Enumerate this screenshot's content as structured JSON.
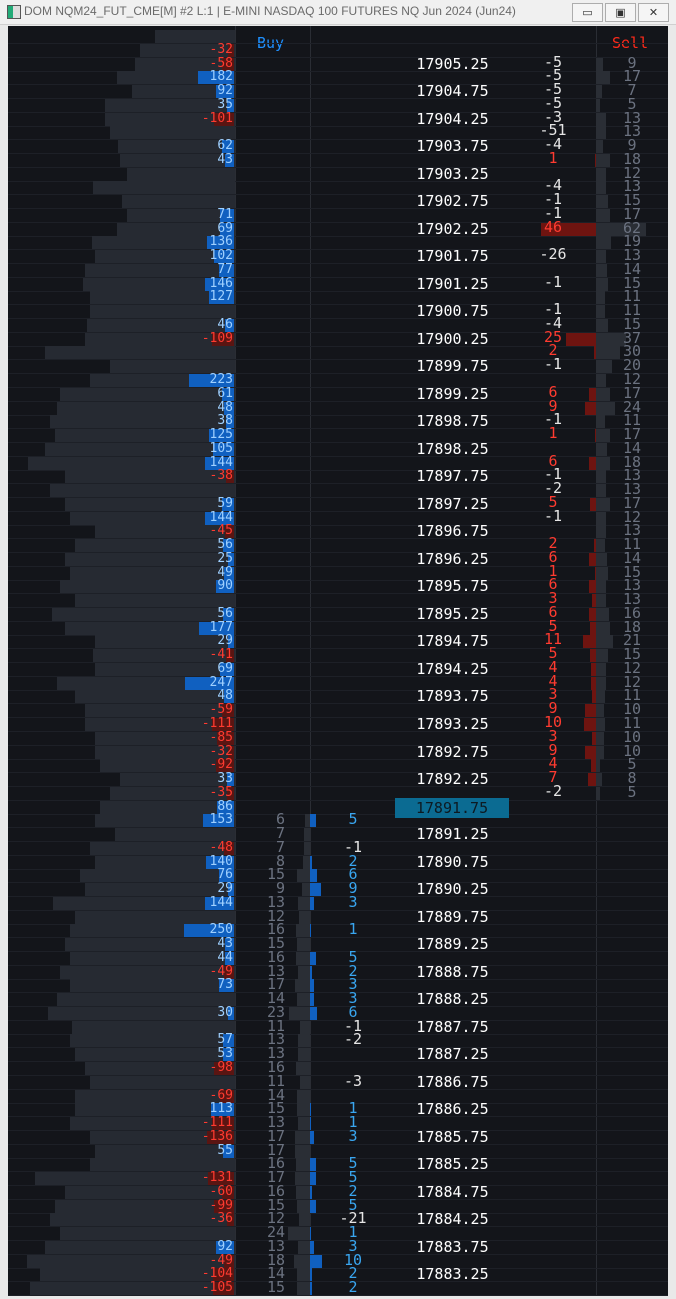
{
  "window": {
    "title": "DOM NQM24_FUT_CME[M] #2 L:1 | E-MINI NASDAQ 100 FUTURES NQ Jun 2024 (Jun24)",
    "minimize_icon": "minimize-icon",
    "maximize_icon": "restore-icon",
    "close_icon": "close-icon"
  },
  "header": {
    "buy_label": "Buy",
    "sell_label": "Sell",
    "buy_color": "#1e90ff",
    "sell_color": "#ff2a1a"
  },
  "colors": {
    "positive_delta": "#9fd0ff",
    "positive_box": "#1060c0",
    "negative_delta": "#ff3b30",
    "buy_delta": "#39a6f0",
    "sell_positive": "#ff3b30",
    "neutral": "#e6e6e6",
    "current_price_bg": "#0b6b92"
  },
  "ladder": {
    "current_price": "17891.75",
    "price_labels": [
      "17905.25",
      "17904.75",
      "17904.25",
      "17903.75",
      "17903.25",
      "17902.75",
      "17902.25",
      "17901.75",
      "17901.25",
      "17900.75",
      "17900.25",
      "17899.75",
      "17899.25",
      "17898.75",
      "17898.25",
      "17897.75",
      "17897.25",
      "17896.75",
      "17896.25",
      "17895.75",
      "17895.25",
      "17894.75",
      "17894.25",
      "17893.75",
      "17893.25",
      "17892.75",
      "17892.25",
      "17891.75",
      "17891.25",
      "17890.75",
      "17890.25",
      "17889.75",
      "17889.25",
      "17888.75",
      "17888.25",
      "17887.75",
      "17887.25",
      "17886.75",
      "17886.25",
      "17885.75",
      "17885.25",
      "17884.75",
      "17884.25",
      "17883.75",
      "17883.25"
    ],
    "left_delta": [
      null,
      -32,
      -58,
      182,
      92,
      35,
      -101,
      null,
      62,
      43,
      null,
      null,
      null,
      71,
      69,
      136,
      102,
      77,
      146,
      127,
      null,
      46,
      -109,
      null,
      null,
      223,
      61,
      48,
      38,
      125,
      105,
      144,
      -38,
      null,
      59,
      144,
      -45,
      56,
      25,
      49,
      90,
      null,
      56,
      177,
      29,
      -41,
      69,
      247,
      48,
      -59,
      -111,
      -85,
      -32,
      -92,
      33,
      -35,
      86,
      153,
      null,
      -48,
      140,
      76,
      29,
      144,
      null,
      250,
      43,
      44,
      -49,
      73,
      null,
      30,
      null,
      57,
      53,
      -98,
      null,
      -69,
      113,
      -111,
      -136,
      55,
      null,
      -131,
      -60,
      -99,
      -36,
      null,
      92,
      -49,
      -104,
      -105
    ],
    "volume_profile": [
      80,
      95,
      100,
      118,
      103,
      130,
      130,
      125,
      117,
      115,
      108,
      142,
      113,
      108,
      118,
      143,
      140,
      150,
      152,
      145,
      145,
      148,
      150,
      190,
      125,
      145,
      175,
      178,
      185,
      180,
      190,
      207,
      170,
      185,
      170,
      165,
      140,
      160,
      170,
      165,
      175,
      160,
      183,
      170,
      140,
      142,
      140,
      178,
      160,
      150,
      150,
      140,
      140,
      135,
      115,
      125,
      135,
      140,
      120,
      145,
      140,
      155,
      150,
      182,
      160,
      165,
      170,
      165,
      175,
      165,
      178,
      187,
      163,
      165,
      160,
      150,
      145,
      160,
      160,
      165,
      145,
      140,
      145,
      200,
      170,
      180,
      185,
      175,
      190,
      208,
      195,
      205
    ],
    "sell_delta": [
      -5,
      -5,
      -5,
      -5,
      -3,
      -51,
      -4,
      1,
      null,
      -4,
      -1,
      -1,
      46,
      null,
      -26,
      null,
      -1,
      null,
      -1,
      -4,
      25,
      2,
      -1,
      null,
      6,
      9,
      -1,
      1,
      null,
      6,
      -1,
      -2,
      5,
      -1,
      null,
      2,
      6,
      1,
      6,
      3,
      6,
      5,
      11,
      5,
      4,
      4,
      3,
      9,
      10,
      3,
      9,
      4,
      7,
      -2
    ],
    "ask_size": [
      9,
      17,
      7,
      5,
      13,
      13,
      9,
      18,
      12,
      13,
      15,
      17,
      62,
      19,
      13,
      14,
      15,
      11,
      11,
      15,
      37,
      30,
      20,
      12,
      17,
      24,
      11,
      17,
      14,
      18,
      13,
      13,
      17,
      12,
      13,
      11,
      14,
      15,
      13,
      13,
      16,
      18,
      21,
      15,
      12,
      12,
      11,
      10,
      11,
      10,
      10,
      5,
      8,
      5
    ],
    "bid_size": [
      6,
      7,
      7,
      8,
      15,
      9,
      13,
      12,
      16,
      15,
      16,
      13,
      17,
      14,
      23,
      11,
      13,
      13,
      16,
      11,
      14,
      15,
      13,
      17,
      17,
      16,
      17,
      16,
      15,
      12,
      24,
      13,
      18,
      14,
      15
    ],
    "buy_delta": [
      5,
      null,
      -1,
      2,
      6,
      9,
      3,
      null,
      1,
      null,
      5,
      2,
      3,
      3,
      6,
      -1,
      -2,
      null,
      null,
      -3,
      null,
      1,
      1,
      3,
      null,
      5,
      5,
      2,
      5,
      -21,
      1,
      3,
      10,
      2,
      2
    ]
  }
}
